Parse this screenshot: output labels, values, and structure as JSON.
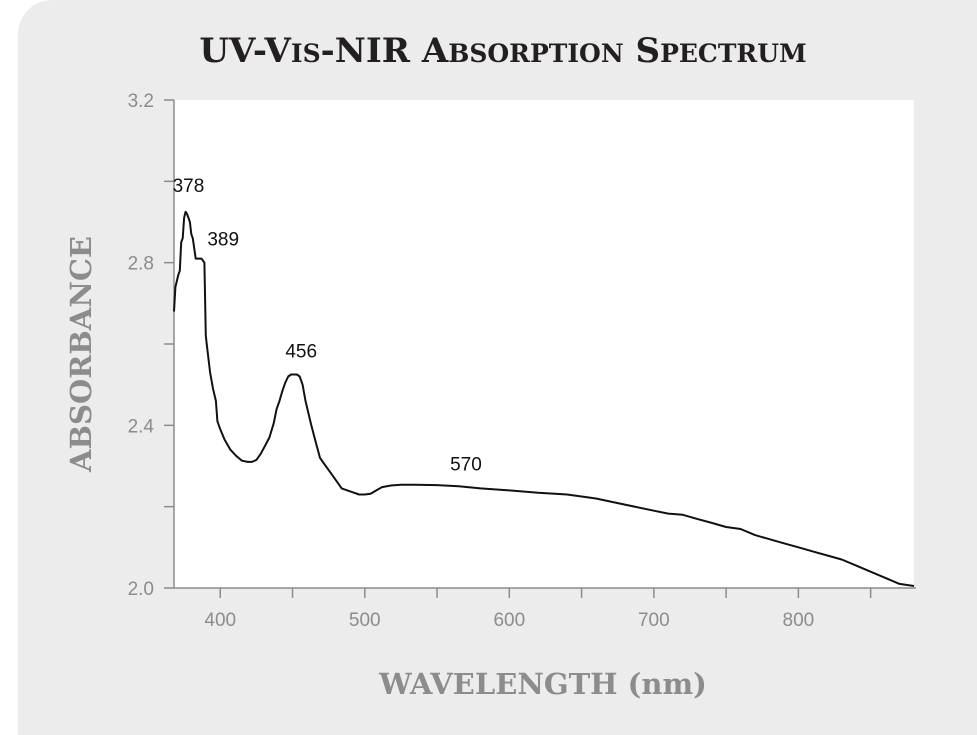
{
  "chart_data": {
    "type": "line",
    "title_parts": [
      {
        "text": "UV-V",
        "size": "big"
      },
      {
        "text": "IS",
        "size": "small"
      },
      {
        "text": "-NIR A",
        "size": "big"
      },
      {
        "text": "BSORPTION",
        "size": "small"
      },
      {
        "text": " S",
        "size": "big"
      },
      {
        "text": "PECTRUM",
        "size": "small"
      }
    ],
    "xlabel": "WAVELENGTH (nm)",
    "ylabel": "ABSORBANCE",
    "xlim": [
      368,
      880
    ],
    "ylim": [
      2.0,
      3.2
    ],
    "x_ticks": [
      400,
      500,
      600,
      700,
      800
    ],
    "x_minor_ticks": [
      450,
      550,
      650,
      750,
      850
    ],
    "y_ticks": [
      "2.0",
      "2.4",
      "2.8",
      "3.2"
    ],
    "y_minor_ticks": [
      2.2,
      2.6,
      3.0
    ],
    "grid": false,
    "background": "#ffffff",
    "panel_color": "#ececec",
    "line_color": "#111111",
    "series": [
      {
        "x": [
          368,
          369,
          371,
          372,
          373,
          374,
          375,
          376,
          377,
          378,
          379,
          380,
          381,
          383,
          385,
          387,
          389,
          390,
          391,
          393,
          395,
          397,
          398,
          400,
          403,
          407,
          411,
          415,
          419,
          422,
          425,
          428,
          431,
          434,
          437,
          439,
          441,
          443,
          445,
          447,
          449,
          451,
          453,
          455,
          457,
          459,
          461,
          463,
          466,
          469,
          472,
          476,
          480,
          484,
          488,
          492,
          496,
          500,
          504,
          508,
          512,
          518,
          525,
          535,
          550,
          565,
          580,
          600,
          620,
          640,
          660,
          680,
          700,
          710,
          720,
          730,
          740,
          750,
          760,
          770,
          780,
          790,
          800,
          810,
          820,
          830,
          840,
          850,
          860,
          870,
          880
        ],
        "y": [
          2.68,
          2.74,
          2.77,
          2.78,
          2.85,
          2.86,
          2.91,
          2.925,
          2.92,
          2.91,
          2.9,
          2.87,
          2.86,
          2.81,
          2.81,
          2.81,
          2.8,
          2.62,
          2.59,
          2.53,
          2.49,
          2.46,
          2.41,
          2.39,
          2.365,
          2.34,
          2.325,
          2.313,
          2.31,
          2.31,
          2.315,
          2.33,
          2.35,
          2.37,
          2.405,
          2.44,
          2.46,
          2.485,
          2.505,
          2.52,
          2.525,
          2.525,
          2.525,
          2.52,
          2.5,
          2.46,
          2.43,
          2.4,
          2.36,
          2.32,
          2.305,
          2.285,
          2.265,
          2.245,
          2.24,
          2.235,
          2.23,
          2.23,
          2.232,
          2.24,
          2.248,
          2.252,
          2.254,
          2.254,
          2.253,
          2.25,
          2.245,
          2.24,
          2.234,
          2.23,
          2.22,
          2.205,
          2.19,
          2.183,
          2.18,
          2.17,
          2.16,
          2.15,
          2.145,
          2.13,
          2.12,
          2.11,
          2.1,
          2.09,
          2.08,
          2.07,
          2.055,
          2.04,
          2.025,
          2.01,
          2.005
        ]
      }
    ],
    "annotations": [
      {
        "text": "378",
        "x": 378,
        "y": 2.925
      },
      {
        "text": "389",
        "x": 389,
        "y": 2.81
      },
      {
        "text": "456",
        "x": 456,
        "y": 2.525
      },
      {
        "text": "570",
        "x": 570,
        "y": 2.254
      }
    ]
  }
}
